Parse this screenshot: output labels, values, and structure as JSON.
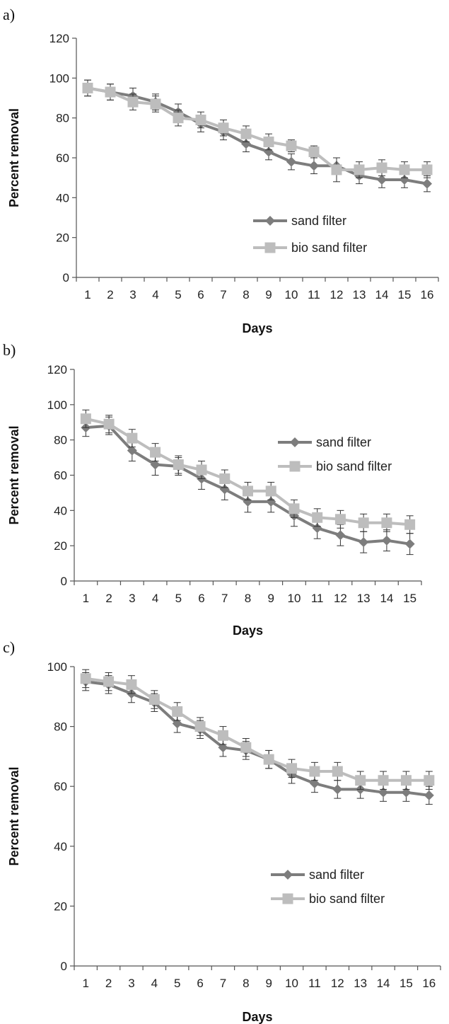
{
  "chart_data": [
    {
      "panel": "a)",
      "type": "line",
      "xlabel": "Days",
      "ylabel": "Percent removal",
      "ylim": [
        0,
        120
      ],
      "yticks": [
        0,
        20,
        40,
        60,
        80,
        100,
        120
      ],
      "categories": [
        "1",
        "2",
        "3",
        "4",
        "5",
        "6",
        "7",
        "8",
        "9",
        "10",
        "11",
        "12",
        "13",
        "14",
        "15",
        "16"
      ],
      "legend_position": "lower-right",
      "series": [
        {
          "name": "sand filter",
          "color": "#7d7d7d",
          "marker": "diamond",
          "values": [
            95,
            93,
            91,
            88,
            83,
            77,
            73,
            67,
            63,
            58,
            56,
            56,
            51,
            49,
            49,
            47
          ],
          "error": [
            4,
            4,
            4,
            4,
            4,
            4,
            4,
            4,
            4,
            4,
            4,
            4,
            4,
            4,
            4,
            4
          ]
        },
        {
          "name": "bio sand filter",
          "color": "#bdbdbd",
          "marker": "square",
          "values": [
            95,
            93,
            88,
            87,
            80,
            79,
            75,
            72,
            68,
            66,
            63,
            54,
            54,
            55,
            54,
            54
          ],
          "error": [
            4,
            4,
            4,
            4,
            4,
            4,
            4,
            4,
            4,
            3,
            3,
            6,
            4,
            4,
            4,
            4
          ]
        }
      ]
    },
    {
      "panel": "b)",
      "type": "line",
      "xlabel": "Days",
      "ylabel": "Percent removal",
      "ylim": [
        0,
        120
      ],
      "yticks": [
        0,
        20,
        40,
        60,
        80,
        100,
        120
      ],
      "categories": [
        "1",
        "2",
        "3",
        "4",
        "5",
        "6",
        "7",
        "8",
        "9",
        "10",
        "11",
        "12",
        "13",
        "14",
        "15"
      ],
      "legend_position": "top-right",
      "series": [
        {
          "name": "sand filter",
          "color": "#7d7d7d",
          "marker": "diamond",
          "values": [
            87,
            88,
            74,
            66,
            65,
            58,
            52,
            45,
            45,
            37,
            30,
            26,
            22,
            23,
            21
          ],
          "error": [
            5,
            5,
            6,
            6,
            5,
            6,
            6,
            6,
            6,
            6,
            6,
            6,
            6,
            6,
            6
          ]
        },
        {
          "name": "bio sand filter",
          "color": "#bdbdbd",
          "marker": "square",
          "values": [
            92,
            89,
            81,
            73,
            66,
            63,
            58,
            51,
            51,
            41,
            36,
            35,
            33,
            33,
            32
          ],
          "error": [
            5,
            5,
            5,
            5,
            5,
            5,
            5,
            5,
            5,
            5,
            5,
            5,
            5,
            5,
            5
          ]
        }
      ]
    },
    {
      "panel": "c)",
      "type": "line",
      "xlabel": "Days",
      "ylabel": "Percent removal",
      "ylim": [
        0,
        100
      ],
      "yticks": [
        0,
        20,
        40,
        60,
        80,
        100
      ],
      "categories": [
        "1",
        "2",
        "3",
        "4",
        "5",
        "6",
        "7",
        "8",
        "9",
        "10",
        "11",
        "12",
        "13",
        "14",
        "15",
        "16"
      ],
      "legend_position": "lower-right",
      "series": [
        {
          "name": "sand filter",
          "color": "#7d7d7d",
          "marker": "diamond",
          "values": [
            95,
            94,
            91,
            88,
            81,
            79,
            73,
            72,
            69,
            64,
            61,
            59,
            59,
            58,
            58,
            57
          ],
          "error": [
            3,
            3,
            3,
            3,
            3,
            3,
            3,
            3,
            3,
            3,
            3,
            3,
            3,
            3,
            3,
            3
          ]
        },
        {
          "name": "bio sand filter",
          "color": "#bdbdbd",
          "marker": "square",
          "values": [
            96,
            95,
            94,
            89,
            85,
            80,
            77,
            73,
            69,
            66,
            65,
            65,
            62,
            62,
            62,
            62
          ],
          "error": [
            3,
            3,
            3,
            3,
            3,
            3,
            3,
            3,
            3,
            3,
            3,
            3,
            3,
            3,
            3,
            3
          ]
        }
      ]
    }
  ]
}
